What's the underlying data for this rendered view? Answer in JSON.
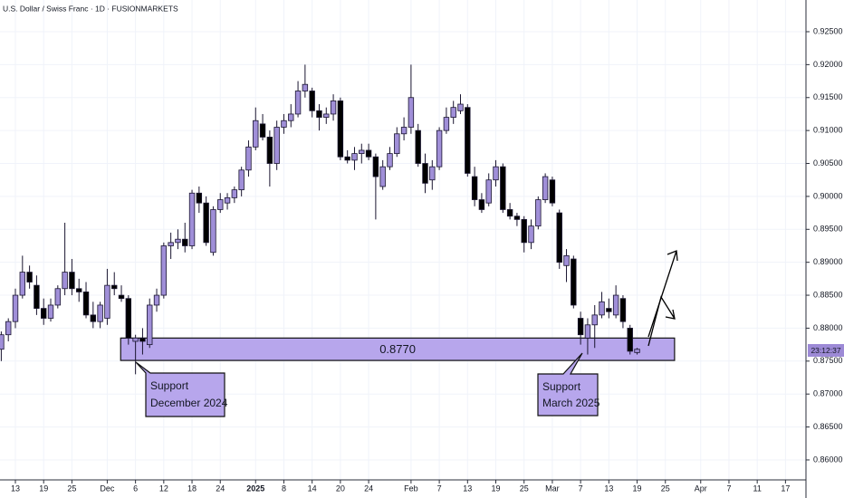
{
  "chart_data": {
    "type": "candlestick",
    "title": "U.S. Dollar / Swiss Franc · 1D · FUSIONMARKETS",
    "up_color": "#a08fd8",
    "down_color": "#000000",
    "grid": true,
    "xlim": [
      -0.18,
      113.9
    ],
    "ylim": [
      0.85697,
      0.92981
    ],
    "yticks": [
      {
        "value": 0.86,
        "label": "0.86000"
      },
      {
        "value": 0.865,
        "label": "0.86500"
      },
      {
        "value": 0.87,
        "label": "0.87000"
      },
      {
        "value": 0.875,
        "label": "0.87500"
      },
      {
        "value": 0.88,
        "label": "0.88000"
      },
      {
        "value": 0.885,
        "label": "0.88500"
      },
      {
        "value": 0.89,
        "label": "0.89000"
      },
      {
        "value": 0.895,
        "label": "0.89500"
      },
      {
        "value": 0.9,
        "label": "0.90000"
      },
      {
        "value": 0.905,
        "label": "0.90500"
      },
      {
        "value": 0.91,
        "label": "0.91000"
      },
      {
        "value": 0.915,
        "label": "0.91500"
      },
      {
        "value": 0.92,
        "label": "0.92000"
      },
      {
        "value": 0.925,
        "label": "0.92500"
      }
    ],
    "xticks": [
      {
        "value": 2,
        "label": "13"
      },
      {
        "value": 6,
        "label": "19"
      },
      {
        "value": 10,
        "label": "25"
      },
      {
        "value": 15,
        "label": "Dec"
      },
      {
        "value": 19,
        "label": "6"
      },
      {
        "value": 23,
        "label": "12"
      },
      {
        "value": 27,
        "label": "18"
      },
      {
        "value": 31,
        "label": "24"
      },
      {
        "value": 36,
        "label": "2025"
      },
      {
        "value": 40,
        "label": "8"
      },
      {
        "value": 44,
        "label": "14"
      },
      {
        "value": 48,
        "label": "20"
      },
      {
        "value": 52,
        "label": "24"
      },
      {
        "value": 58,
        "label": "Feb"
      },
      {
        "value": 62,
        "label": "7"
      },
      {
        "value": 66,
        "label": "13"
      },
      {
        "value": 70,
        "label": "19"
      },
      {
        "value": 74,
        "label": "25"
      },
      {
        "value": 78,
        "label": "Mar"
      },
      {
        "value": 82,
        "label": "7"
      },
      {
        "value": 86,
        "label": "13"
      },
      {
        "value": 90,
        "label": "19"
      },
      {
        "value": 94,
        "label": "25"
      },
      {
        "value": 99,
        "label": "Apr"
      },
      {
        "value": 103,
        "label": "7"
      },
      {
        "value": 107,
        "label": "11"
      },
      {
        "value": 111,
        "label": "17"
      }
    ],
    "open": [
      0.8768,
      0.879,
      0.881,
      0.885,
      0.8885,
      0.8865,
      0.883,
      0.8815,
      0.8835,
      0.886,
      0.8885,
      0.886,
      0.8855,
      0.882,
      0.881,
      0.8815,
      0.8865,
      0.885,
      0.8845,
      0.878,
      0.8785,
      0.8775,
      0.8835,
      0.885,
      0.8925,
      0.893,
      0.8935,
      0.8925,
      0.9005,
      0.899,
      0.8915,
      0.898,
      0.899,
      0.8998,
      0.901,
      0.904,
      0.9075,
      0.911,
      0.909,
      0.905,
      0.9105,
      0.9115,
      0.9125,
      0.916,
      0.916,
      0.913,
      0.912,
      0.9125,
      0.9145,
      0.906,
      0.9055,
      0.9065,
      0.907,
      0.906,
      0.9015,
      0.9045,
      0.9065,
      0.9095,
      0.9105,
      0.91,
      0.905,
      0.9025,
      0.9045,
      0.91,
      0.912,
      0.913,
      0.9135,
      0.903,
      0.8995,
      0.899,
      0.9025,
      0.9045,
      0.898,
      0.897,
      0.8965,
      0.893,
      0.8955,
      0.8995,
      0.9025,
      0.8975,
      0.8895,
      0.8905,
      0.8815,
      0.8785,
      0.8805,
      0.882,
      0.883,
      0.882,
      0.8845,
      0.88,
      0.8763
    ],
    "high": [
      0.8795,
      0.8815,
      0.886,
      0.891,
      0.8895,
      0.888,
      0.8845,
      0.8845,
      0.8865,
      0.896,
      0.8905,
      0.8875,
      0.887,
      0.884,
      0.884,
      0.889,
      0.8885,
      0.8865,
      0.885,
      0.879,
      0.88,
      0.8845,
      0.886,
      0.893,
      0.8945,
      0.895,
      0.896,
      0.901,
      0.9015,
      0.9,
      0.8985,
      0.9005,
      0.9005,
      0.9015,
      0.9045,
      0.9085,
      0.9135,
      0.9125,
      0.91,
      0.9115,
      0.9125,
      0.914,
      0.9175,
      0.92,
      0.9165,
      0.914,
      0.9135,
      0.9155,
      0.915,
      0.907,
      0.9075,
      0.908,
      0.908,
      0.9065,
      0.9055,
      0.9075,
      0.9105,
      0.912,
      0.92,
      0.911,
      0.9065,
      0.9055,
      0.9105,
      0.9135,
      0.9145,
      0.9155,
      0.914,
      0.9045,
      0.9005,
      0.9035,
      0.9055,
      0.905,
      0.899,
      0.8975,
      0.897,
      0.8965,
      0.9,
      0.9035,
      0.903,
      0.898,
      0.892,
      0.891,
      0.8825,
      0.8815,
      0.8835,
      0.8855,
      0.8845,
      0.8865,
      0.885,
      0.8805,
      0.877
    ],
    "low": [
      0.875,
      0.878,
      0.88,
      0.8845,
      0.886,
      0.882,
      0.8805,
      0.881,
      0.883,
      0.885,
      0.885,
      0.884,
      0.8815,
      0.88,
      0.88,
      0.8805,
      0.885,
      0.884,
      0.8775,
      0.873,
      0.876,
      0.877,
      0.8825,
      0.8845,
      0.8905,
      0.892,
      0.8915,
      0.892,
      0.8975,
      0.8925,
      0.891,
      0.8975,
      0.898,
      0.899,
      0.9,
      0.903,
      0.907,
      0.9085,
      0.9015,
      0.904,
      0.9095,
      0.9105,
      0.912,
      0.915,
      0.912,
      0.91,
      0.911,
      0.9115,
      0.9055,
      0.905,
      0.904,
      0.905,
      0.9055,
      0.8965,
      0.901,
      0.904,
      0.906,
      0.9085,
      0.9095,
      0.9045,
      0.9005,
      0.901,
      0.904,
      0.9095,
      0.911,
      0.9125,
      0.903,
      0.8985,
      0.8975,
      0.8985,
      0.9015,
      0.8975,
      0.8965,
      0.8955,
      0.8915,
      0.892,
      0.895,
      0.899,
      0.8985,
      0.889,
      0.887,
      0.883,
      0.8775,
      0.876,
      0.877,
      0.8815,
      0.8815,
      0.8815,
      0.88,
      0.876,
      0.876
    ],
    "close": [
      0.879,
      0.881,
      0.885,
      0.8885,
      0.887,
      0.883,
      0.8815,
      0.8835,
      0.886,
      0.8885,
      0.886,
      0.8855,
      0.882,
      0.881,
      0.8835,
      0.8865,
      0.886,
      0.8845,
      0.8785,
      0.8785,
      0.878,
      0.8835,
      0.885,
      0.8925,
      0.893,
      0.8935,
      0.8925,
      0.9005,
      0.899,
      0.893,
      0.898,
      0.8995,
      0.8998,
      0.901,
      0.904,
      0.9075,
      0.9115,
      0.909,
      0.905,
      0.9105,
      0.9115,
      0.9125,
      0.916,
      0.917,
      0.913,
      0.912,
      0.9125,
      0.9145,
      0.906,
      0.9055,
      0.9065,
      0.907,
      0.906,
      0.903,
      0.9045,
      0.9065,
      0.9095,
      0.9105,
      0.915,
      0.905,
      0.902,
      0.9045,
      0.91,
      0.912,
      0.9135,
      0.914,
      0.9035,
      0.8995,
      0.898,
      0.9025,
      0.9045,
      0.898,
      0.897,
      0.8965,
      0.893,
      0.8955,
      0.8995,
      0.903,
      0.899,
      0.89,
      0.891,
      0.8835,
      0.879,
      0.8805,
      0.882,
      0.884,
      0.8825,
      0.885,
      0.881,
      0.8765,
      0.8768
    ],
    "zone": {
      "label": "0.8770",
      "top": 0.8785,
      "bottom": 0.8751,
      "start": 16.9,
      "end": 95.3
    },
    "annotations": [
      [
        "Support",
        "December 2024"
      ],
      [
        "Support",
        "March 2025"
      ]
    ],
    "price_label": "23:12:37"
  }
}
